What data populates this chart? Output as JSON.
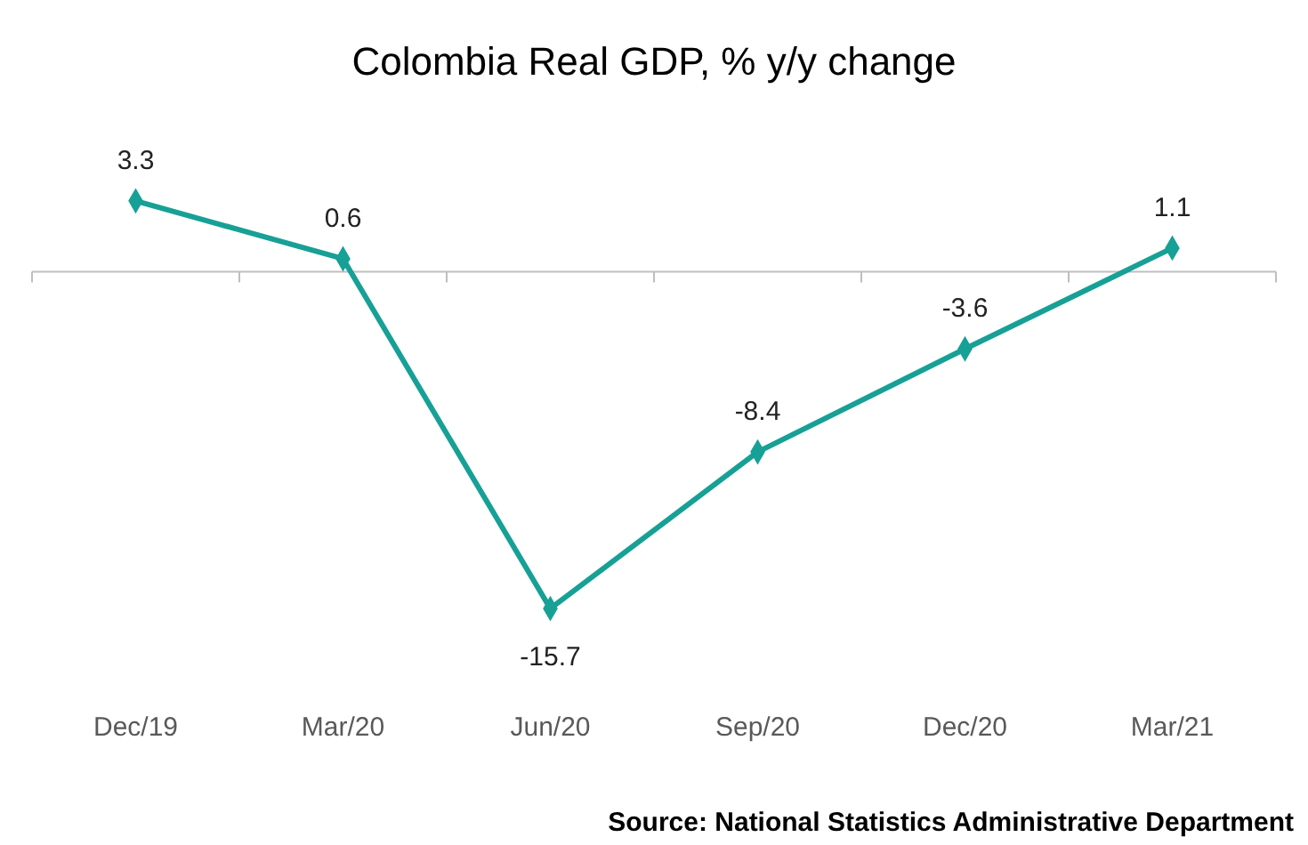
{
  "chart_data": {
    "type": "line",
    "title": "Colombia Real GDP, % y/y change",
    "categories": [
      "Dec/19",
      "Mar/20",
      "Jun/20",
      "Sep/20",
      "Dec/20",
      "Mar/21"
    ],
    "series": [
      {
        "color": "#17a096",
        "values": [
          3.3,
          0.6,
          -15.7,
          -8.4,
          -3.6,
          1.1
        ]
      }
    ],
    "data_labels": true,
    "marker": "diamond",
    "line_style": "solid",
    "grid": false,
    "annotations": [
      "Source: National Statistics Administrative Department"
    ]
  }
}
